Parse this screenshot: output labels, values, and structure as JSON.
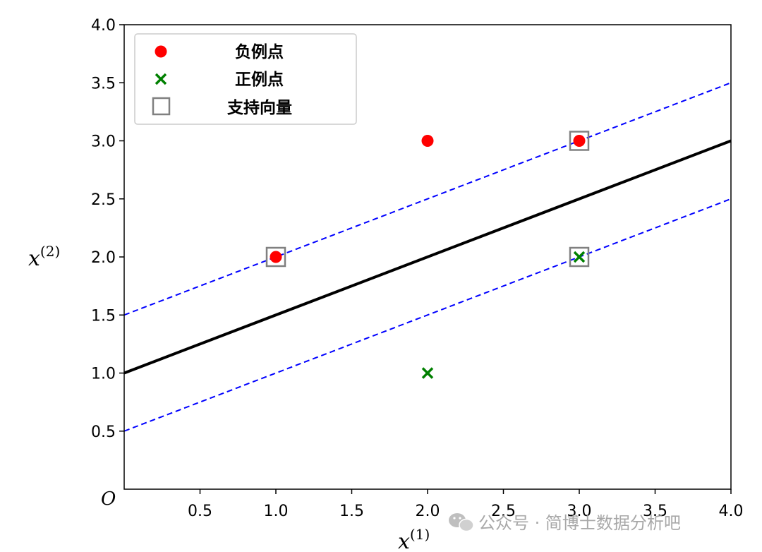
{
  "chart_data": {
    "type": "scatter",
    "xlabel_base": "x",
    "xlabel_sup": "(1)",
    "ylabel_base": "x",
    "ylabel_sup": "(2)",
    "origin_label": "O",
    "xlim": [
      0,
      4.0
    ],
    "ylim": [
      0,
      4.0
    ],
    "grid": false,
    "legend_position": "top-left",
    "x_ticks": [
      {
        "value": 0.5,
        "label": "0.5"
      },
      {
        "value": 1.0,
        "label": "1.0"
      },
      {
        "value": 1.5,
        "label": "1.5"
      },
      {
        "value": 2.0,
        "label": "2.0"
      },
      {
        "value": 2.5,
        "label": "2.5"
      },
      {
        "value": 3.0,
        "label": "3.0"
      },
      {
        "value": 3.5,
        "label": "3.5"
      },
      {
        "value": 4.0,
        "label": "4.0"
      }
    ],
    "y_ticks": [
      {
        "value": 0.5,
        "label": "0.5"
      },
      {
        "value": 1.0,
        "label": "1.0"
      },
      {
        "value": 1.5,
        "label": "1.5"
      },
      {
        "value": 2.0,
        "label": "2.0"
      },
      {
        "value": 2.5,
        "label": "2.5"
      },
      {
        "value": 3.0,
        "label": "3.0"
      },
      {
        "value": 3.5,
        "label": "3.5"
      },
      {
        "value": 4.0,
        "label": "4.0"
      }
    ],
    "series": [
      {
        "name": "负例点",
        "marker": "circle",
        "color": "#ff0000",
        "points": [
          [
            1,
            2
          ],
          [
            2,
            3
          ],
          [
            3,
            3
          ]
        ]
      },
      {
        "name": "正例点",
        "marker": "x",
        "color": "#008000",
        "points": [
          [
            2,
            1
          ],
          [
            3,
            2
          ]
        ]
      },
      {
        "name": "支持向量",
        "marker": "square",
        "color": "#808080",
        "points": [
          [
            1,
            2
          ],
          [
            3,
            3
          ],
          [
            3,
            2
          ]
        ]
      }
    ],
    "lines": [
      {
        "kind": "decision-boundary",
        "style": "solid",
        "color": "#000000",
        "points": [
          [
            0,
            1.0
          ],
          [
            4,
            3.0
          ]
        ]
      },
      {
        "kind": "margin-upper",
        "style": "dashed",
        "color": "#0000ff",
        "points": [
          [
            0,
            1.5
          ],
          [
            4,
            3.5
          ]
        ]
      },
      {
        "kind": "margin-lower",
        "style": "dashed",
        "color": "#0000ff",
        "points": [
          [
            0,
            0.5
          ],
          [
            4,
            2.5
          ]
        ]
      }
    ]
  },
  "watermark": {
    "text": "公众号 · 简博士数据分析吧",
    "icon": "wechat-icon"
  }
}
